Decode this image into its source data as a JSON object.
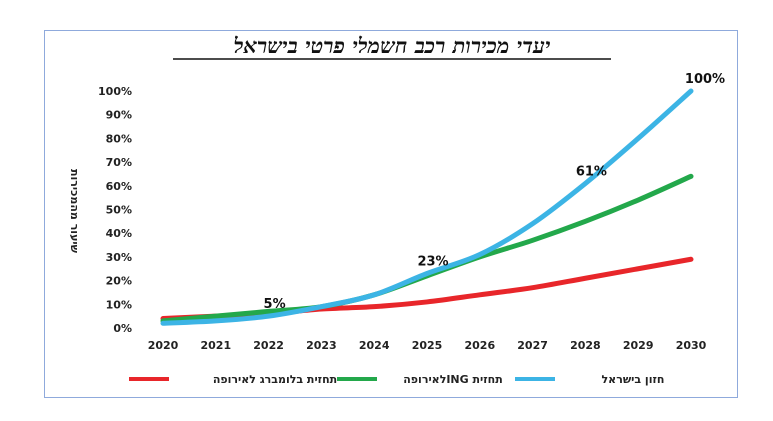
{
  "chart_data": {
    "type": "line",
    "title": "יעדי מכירות רכב חשמלי פרטי בישראל",
    "ylabel": "שיעור מהמכירות",
    "xlabel": "",
    "x": [
      2020,
      2021,
      2022,
      2023,
      2024,
      2025,
      2026,
      2027,
      2028,
      2029,
      2030
    ],
    "x_tick_labels": [
      "2020",
      "2021",
      "2022",
      "2023",
      "2024",
      "2025",
      "2026",
      "2027",
      "2028",
      "2029",
      "2030"
    ],
    "ylim": [
      0,
      100
    ],
    "y_tick_labels": [
      "0%",
      "10%",
      "20%",
      "30%",
      "40%",
      "50%",
      "60%",
      "70%",
      "80%",
      "90%",
      "100%"
    ],
    "grid": false,
    "legend_position": "bottom",
    "series": [
      {
        "name": "חזון בישראל",
        "color": "#3cb4e5",
        "values": [
          2,
          3,
          5,
          9,
          14,
          23,
          31,
          44,
          61,
          80,
          100
        ]
      },
      {
        "name": "תחזית INGלאירופה",
        "color": "#23a84b",
        "values": [
          3,
          5,
          7,
          9,
          14,
          22,
          30,
          37,
          45,
          54,
          64
        ]
      },
      {
        "name": "תחזית בלומברג לאירופה",
        "color": "#e8262a",
        "values": [
          4,
          5,
          6,
          8,
          9,
          11,
          14,
          17,
          21,
          25,
          29
        ]
      }
    ],
    "annotations": [
      {
        "x": 2022,
        "y": 5,
        "text": "5%"
      },
      {
        "x": 2025,
        "y": 23,
        "text": "23%"
      },
      {
        "x": 2028,
        "y": 61,
        "text": "61%"
      },
      {
        "x": 2030,
        "y": 100,
        "text": "100%"
      }
    ]
  }
}
